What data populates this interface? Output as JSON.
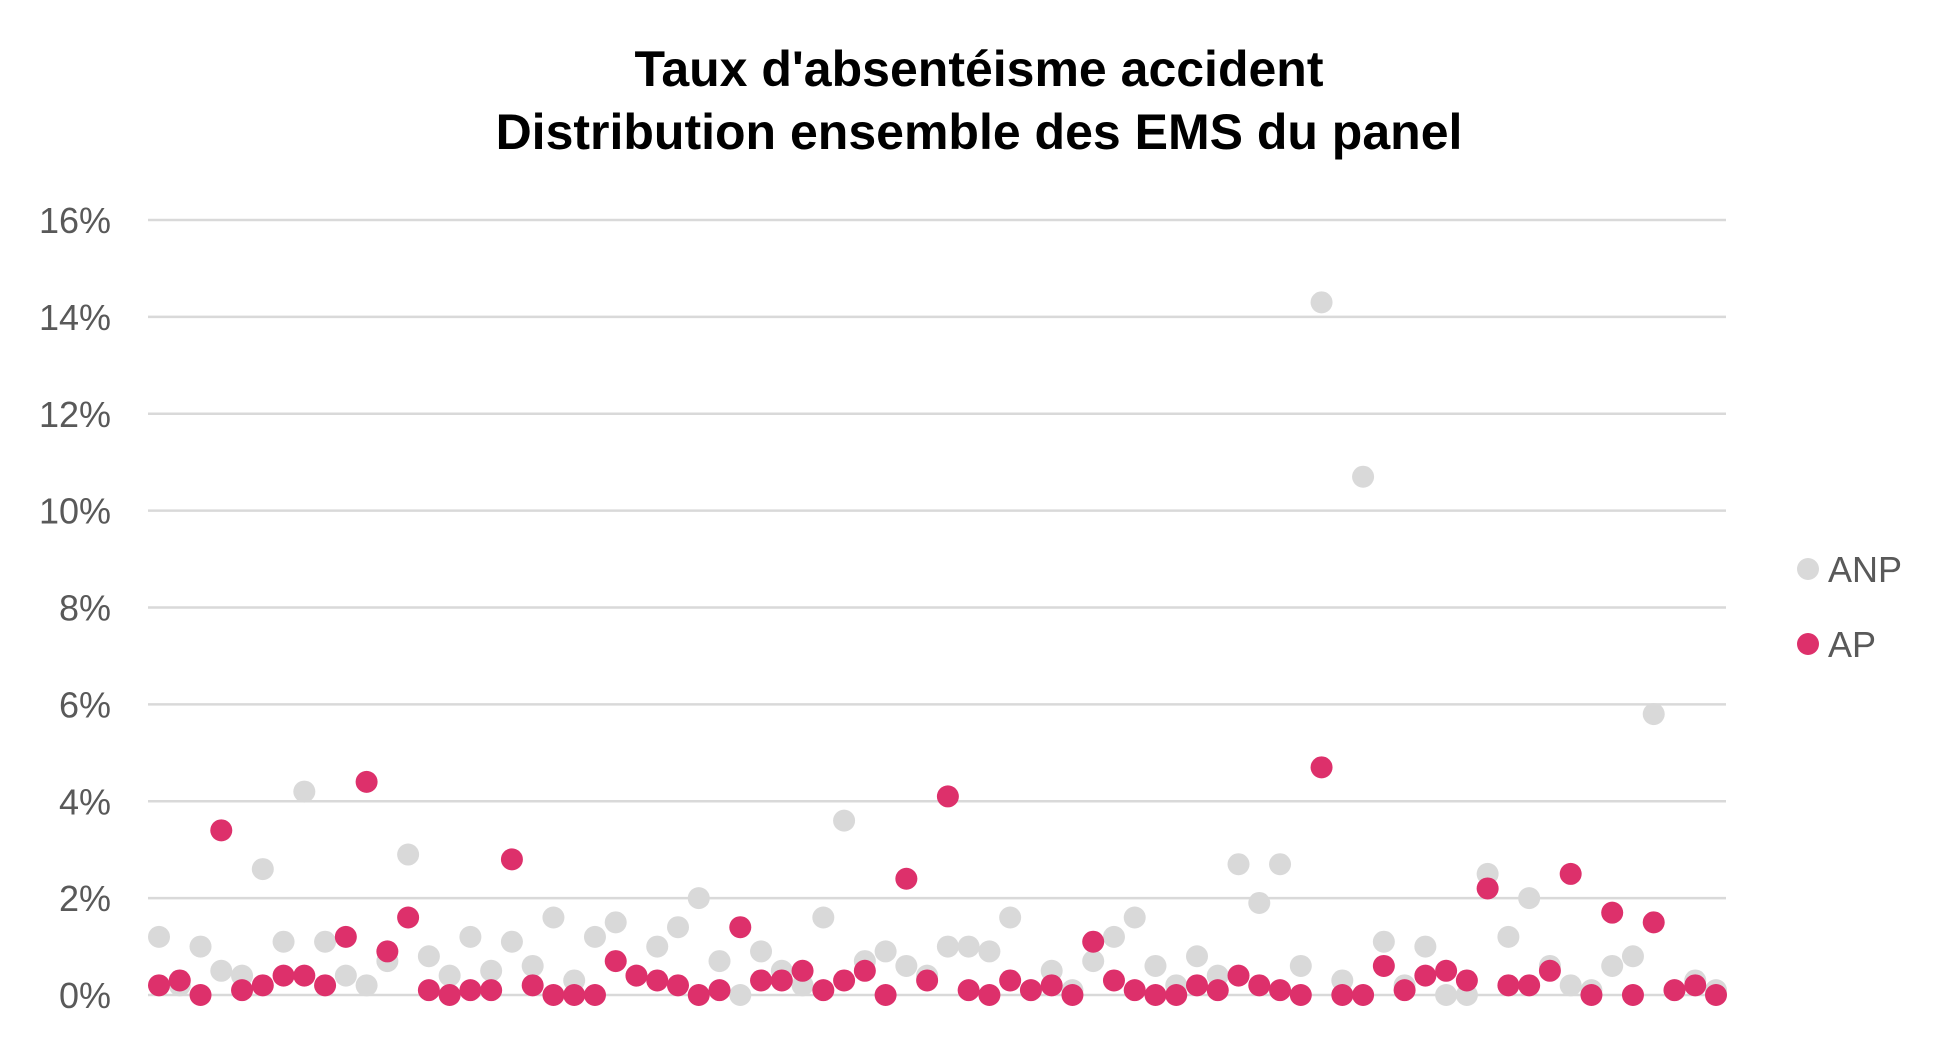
{
  "chart_data": {
    "type": "scatter",
    "title": [
      "Taux d'absentéisme accident",
      "Distribution ensemble des EMS du panel"
    ],
    "xlabel": "",
    "ylabel": "",
    "ylim": [
      0,
      16
    ],
    "yticks": [
      0,
      2,
      4,
      6,
      8,
      10,
      12,
      14,
      16
    ],
    "ytick_labels": [
      "0%",
      "2%",
      "4%",
      "6%",
      "8%",
      "10%",
      "12%",
      "14%",
      "16%"
    ],
    "grid": true,
    "legend_position": "right",
    "colors": {
      "ANP": "#d9d9d9",
      "AP": "#dd306b"
    },
    "series": [
      {
        "name": "ANP",
        "values": [
          1.2,
          0.2,
          1.0,
          0.5,
          0.4,
          2.6,
          1.1,
          4.2,
          1.1,
          0.4,
          0.2,
          0.7,
          2.9,
          0.8,
          0.4,
          1.2,
          0.5,
          1.1,
          0.6,
          1.6,
          0.3,
          1.2,
          1.5,
          0.4,
          1.0,
          1.4,
          2.0,
          0.7,
          0.0,
          0.9,
          0.5,
          0.2,
          1.6,
          3.6,
          0.7,
          0.9,
          0.6,
          0.4,
          1.0,
          1.0,
          0.9,
          1.6,
          0.1,
          0.5,
          0.1,
          0.7,
          1.2,
          1.6,
          0.6,
          0.2,
          0.8,
          0.4,
          2.7,
          1.9,
          2.7,
          0.6,
          14.3,
          0.3,
          10.7,
          1.1,
          0.2,
          1.0,
          0.0,
          0.0,
          2.5,
          1.2,
          2.0,
          0.6,
          0.2,
          0.1,
          0.6,
          0.8,
          5.8,
          0.1,
          0.3,
          0.1
        ]
      },
      {
        "name": "AP",
        "values": [
          0.2,
          0.3,
          0.0,
          3.4,
          0.1,
          0.2,
          0.4,
          0.4,
          0.2,
          1.2,
          4.4,
          0.9,
          1.6,
          0.1,
          0.0,
          0.1,
          0.1,
          2.8,
          0.2,
          0.0,
          0.0,
          0.0,
          0.7,
          0.4,
          0.3,
          0.2,
          0.0,
          0.1,
          1.4,
          0.3,
          0.3,
          0.5,
          0.1,
          0.3,
          0.5,
          0.0,
          2.4,
          0.3,
          4.1,
          0.1,
          0.0,
          0.3,
          0.1,
          0.2,
          0.0,
          1.1,
          0.3,
          0.1,
          0.0,
          0.0,
          0.2,
          0.1,
          0.4,
          0.2,
          0.1,
          0.0,
          4.7,
          0.0,
          0.0,
          0.6,
          0.1,
          0.4,
          0.5,
          0.3,
          2.2,
          0.2,
          0.2,
          0.5,
          2.5,
          0.0,
          1.7,
          0.0,
          1.5,
          0.1,
          0.2,
          0.0
        ]
      }
    ]
  }
}
